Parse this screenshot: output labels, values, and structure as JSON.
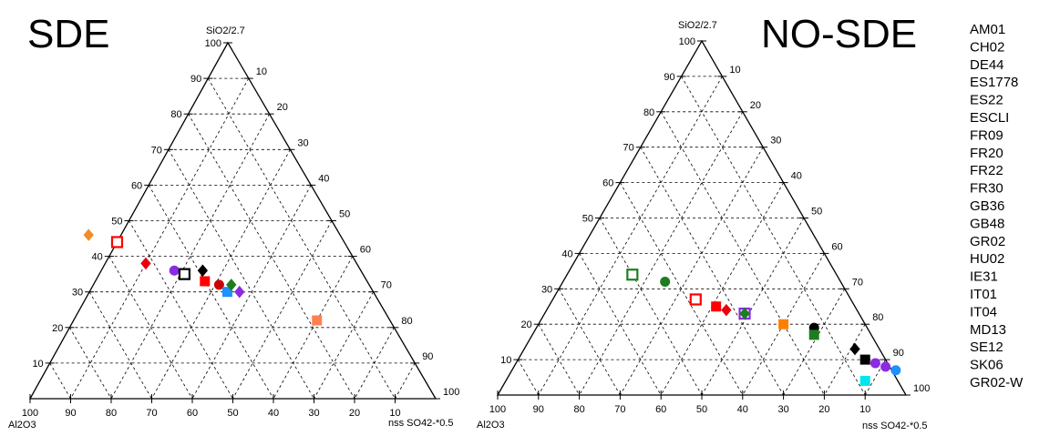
{
  "chart_data": [
    {
      "type": "scatter",
      "subtype": "ternary",
      "title": "SDE",
      "axes": {
        "top": "SiO2/2.7",
        "left": "Al2O3",
        "right": "nss SO42-*0.5",
        "tick_labels": [
          "10",
          "20",
          "30",
          "40",
          "50",
          "60",
          "70",
          "80",
          "90",
          "100"
        ]
      },
      "grid": true,
      "points": [
        {
          "label": "ES1778",
          "marker": "diamond",
          "color": "#f28c28",
          "filled": true,
          "al2o3": 62,
          "sio2": 46,
          "so4": -8
        },
        {
          "label": "ES22",
          "marker": "square",
          "color": "#ff0000",
          "filled": false,
          "al2o3": 56,
          "sio2": 44,
          "so4": 0
        },
        {
          "label": "FR09",
          "marker": "diamond",
          "color": "#e8000b",
          "filled": true,
          "al2o3": 52,
          "sio2": 38,
          "so4": 10
        },
        {
          "label": "FR20",
          "marker": "circle",
          "color": "#8b2be2",
          "filled": true,
          "al2o3": 46,
          "sio2": 36,
          "so4": 18
        },
        {
          "label": "FR22",
          "marker": "square",
          "color": "#000000",
          "filled": false,
          "al2o3": 44,
          "sio2": 35,
          "so4": 21
        },
        {
          "label": "DE44",
          "marker": "diamond",
          "color": "#000000",
          "filled": true,
          "al2o3": 39,
          "sio2": 36,
          "so4": 25
        },
        {
          "label": "GB36",
          "marker": "square",
          "color": "#ff0000",
          "filled": true,
          "al2o3": 40,
          "sio2": 33,
          "so4": 27
        },
        {
          "label": "GB48",
          "marker": "circle",
          "color": "#cc0000",
          "filled": true,
          "al2o3": 37,
          "sio2": 32,
          "so4": 31
        },
        {
          "label": "HU02",
          "marker": "square",
          "color": "#1e90ff",
          "filled": true,
          "al2o3": 36,
          "sio2": 30,
          "so4": 34
        },
        {
          "label": "IE31",
          "marker": "diamond",
          "color": "#1e7d1e",
          "filled": true,
          "al2o3": 34,
          "sio2": 32,
          "so4": 34
        },
        {
          "label": "IT01",
          "marker": "diamond",
          "color": "#8b2be2",
          "filled": true,
          "al2o3": 33,
          "sio2": 30,
          "so4": 37
        },
        {
          "label": "IT04",
          "marker": "square",
          "color": "#ff7f50",
          "filled": true,
          "al2o3": 18,
          "sio2": 22,
          "so4": 60
        }
      ]
    },
    {
      "type": "scatter",
      "subtype": "ternary",
      "title": "NO-SDE",
      "axes": {
        "top": "SiO2/2.7",
        "left": "Al2O3",
        "right": "nss SO42-*0.5",
        "tick_labels": [
          "10",
          "20",
          "30",
          "40",
          "50",
          "60",
          "70",
          "80",
          "90",
          "100"
        ]
      },
      "grid": true,
      "points": [
        {
          "label": "FR30",
          "marker": "square",
          "color": "#1e7d1e",
          "filled": false,
          "al2o3": 50,
          "sio2": 34,
          "so4": 16
        },
        {
          "label": "GB36",
          "marker": "circle",
          "color": "#1e7d1e",
          "filled": true,
          "al2o3": 43,
          "sio2": 32,
          "so4": 25
        },
        {
          "label": "ES22",
          "marker": "square",
          "color": "#ff0000",
          "filled": false,
          "al2o3": 38,
          "sio2": 27,
          "so4": 35
        },
        {
          "label": "FR09",
          "marker": "square",
          "color": "#ff0000",
          "filled": true,
          "al2o3": 34,
          "sio2": 25,
          "so4": 41
        },
        {
          "label": "FR20",
          "marker": "diamond",
          "color": "#e8000b",
          "filled": true,
          "al2o3": 32,
          "sio2": 24,
          "so4": 44
        },
        {
          "label": "IE31",
          "marker": "square",
          "color": "#8b2be2",
          "filled": false,
          "al2o3": 28,
          "sio2": 23,
          "so4": 49
        },
        {
          "label": "IT01",
          "marker": "diamond",
          "color": "#1e7d1e",
          "filled": true,
          "al2o3": 28,
          "sio2": 23,
          "so4": 49
        },
        {
          "label": "IT04",
          "marker": "square",
          "color": "#ff7f00",
          "filled": true,
          "al2o3": 20,
          "sio2": 20,
          "so4": 60
        },
        {
          "label": "MD13",
          "marker": "circle",
          "color": "#000000",
          "filled": true,
          "al2o3": 13,
          "sio2": 19,
          "so4": 68
        },
        {
          "label": "SE12",
          "marker": "square",
          "color": "#1e7d1e",
          "filled": true,
          "al2o3": 14,
          "sio2": 17,
          "so4": 69
        },
        {
          "label": "SK06",
          "marker": "diamond",
          "color": "#000000",
          "filled": true,
          "al2o3": 6,
          "sio2": 13,
          "so4": 81
        },
        {
          "label": "GR02",
          "marker": "square",
          "color": "#000000",
          "filled": true,
          "al2o3": 5,
          "sio2": 10,
          "so4": 85
        },
        {
          "label": "HU02",
          "marker": "circle",
          "color": "#8b2be2",
          "filled": true,
          "al2o3": 3,
          "sio2": 9,
          "so4": 88
        },
        {
          "label": "GR02-W",
          "marker": "circle",
          "color": "#8b2be2",
          "filled": true,
          "al2o3": 1,
          "sio2": 8,
          "so4": 91
        },
        {
          "label": "AM01",
          "marker": "circle",
          "color": "#1e90ff",
          "filled": true,
          "al2o3": -1,
          "sio2": 7,
          "so4": 94
        },
        {
          "label": "CH02",
          "marker": "square",
          "color": "#00e5ee",
          "filled": true,
          "al2o3": 8,
          "sio2": 4,
          "so4": 88
        }
      ]
    }
  ],
  "legend": {
    "placement": "right",
    "entries": [
      "AM01",
      "CH02",
      "DE44",
      "ES1778",
      "ES22",
      "ESCLI",
      "FR09",
      "FR20",
      "FR22",
      "FR30",
      "GB36",
      "GB48",
      "GR02",
      "HU02",
      "IE31",
      "IT01",
      "IT04",
      "MD13",
      "SE12",
      "SK06",
      "GR02-W"
    ]
  }
}
